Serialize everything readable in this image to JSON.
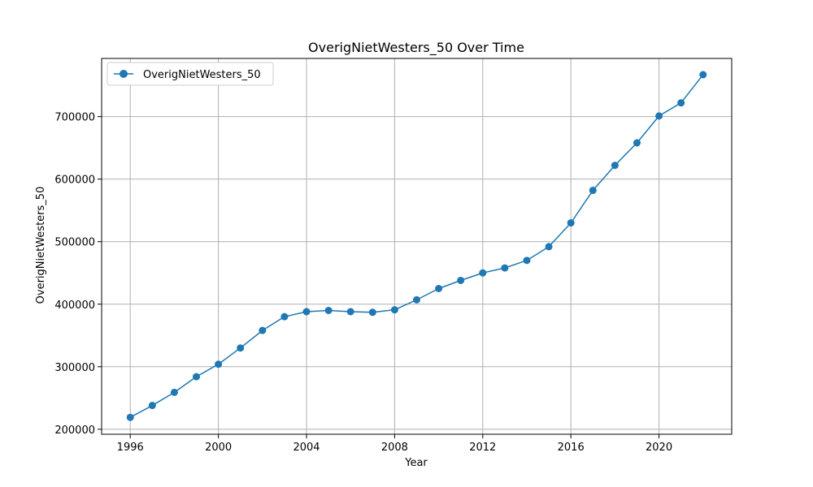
{
  "chart_data": {
    "type": "line",
    "title": "OverigNietWesters_50 Over Time",
    "xlabel": "Year",
    "ylabel": "OverigNietWesters_50",
    "xlim": [
      1994.7,
      2023.3
    ],
    "ylim": [
      192000,
      793000
    ],
    "x_ticks": [
      1996,
      2000,
      2004,
      2008,
      2012,
      2016,
      2020
    ],
    "y_ticks": [
      200000,
      300000,
      400000,
      500000,
      600000,
      700000
    ],
    "grid": true,
    "legend_position": "top-left",
    "series": [
      {
        "name": "OverigNietWesters_50",
        "color": "#1f77b4",
        "marker": "circle",
        "x": [
          1996,
          1997,
          1998,
          1999,
          2000,
          2001,
          2002,
          2003,
          2004,
          2005,
          2006,
          2007,
          2008,
          2009,
          2010,
          2011,
          2012,
          2013,
          2014,
          2015,
          2016,
          2017,
          2018,
          2019,
          2020,
          2021,
          2022
        ],
        "y": [
          219000,
          238000,
          259000,
          284000,
          304000,
          330000,
          358000,
          380000,
          388000,
          390000,
          388000,
          387000,
          391000,
          407000,
          425000,
          438000,
          450000,
          458000,
          470000,
          492000,
          530000,
          582000,
          622000,
          658000,
          701000,
          722000,
          767000
        ]
      }
    ]
  }
}
